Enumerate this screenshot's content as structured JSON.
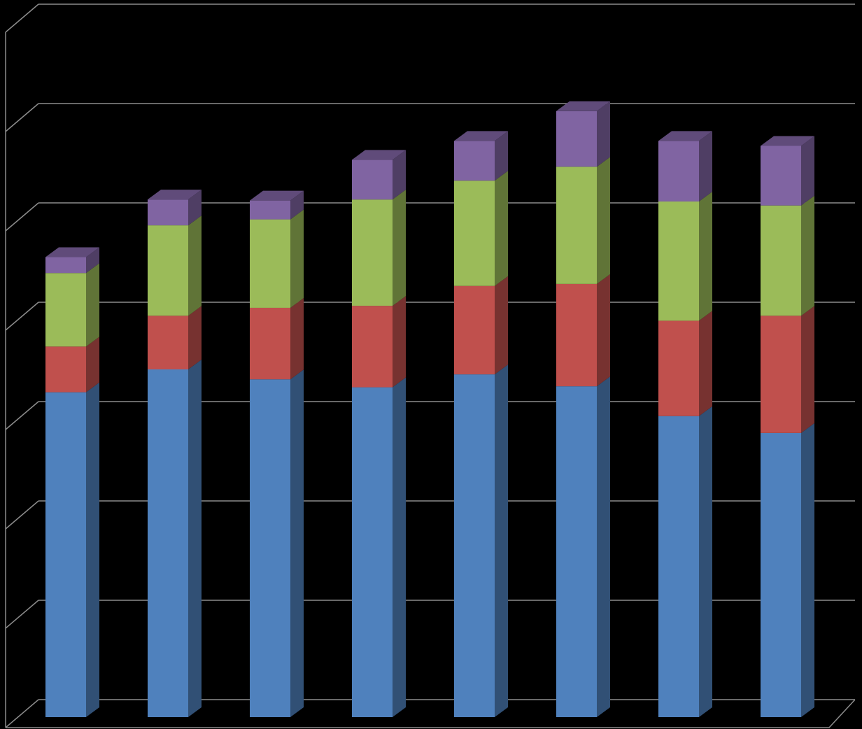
{
  "chart_data": {
    "type": "bar",
    "stacked": true,
    "three_d": true,
    "title": "",
    "xlabel": "",
    "ylabel": "",
    "ylim": [
      0,
      7
    ],
    "gridlines": true,
    "legend": "none",
    "categories": [
      "",
      "",
      "",
      "",
      "",
      "",
      "",
      ""
    ],
    "series": [
      {
        "values": [
          3.27,
          3.5,
          3.4,
          3.32,
          3.45,
          3.33,
          3.03,
          2.86
        ],
        "color": "#4F81BD"
      },
      {
        "values": [
          0.46,
          0.54,
          0.72,
          0.82,
          0.89,
          1.03,
          0.96,
          1.18
        ],
        "color": "#C0504D"
      },
      {
        "values": [
          0.74,
          0.91,
          0.89,
          1.07,
          1.06,
          1.18,
          1.2,
          1.11
        ],
        "color": "#9BBB59"
      },
      {
        "values": [
          0.16,
          0.26,
          0.19,
          0.4,
          0.4,
          0.56,
          0.61,
          0.6
        ],
        "color": "#8064A2"
      }
    ]
  }
}
